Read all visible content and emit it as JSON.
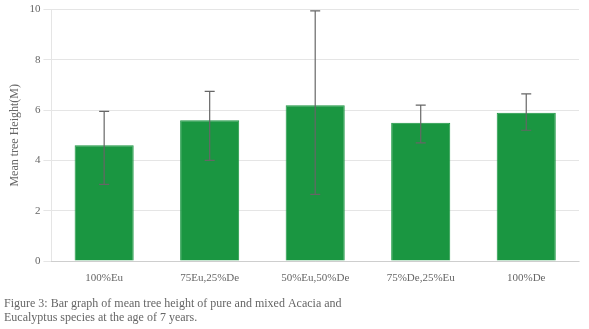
{
  "chart_data": {
    "type": "bar",
    "categories": [
      "100%Eu",
      "75Eu,25%De",
      "50%Eu,50%De",
      "75%De,25%Eu",
      "100%De"
    ],
    "values": [
      4.6,
      5.6,
      6.2,
      5.5,
      5.9
    ],
    "errors_upper": [
      1.35,
      1.15,
      3.75,
      0.7,
      0.75
    ],
    "errors_lower": [
      1.55,
      1.6,
      3.55,
      0.8,
      0.7
    ],
    "color": "#1a9641",
    "ylabel": "Mean tree Height(M)",
    "ylim": [
      0,
      10
    ],
    "yticks": [
      0,
      2,
      4,
      6,
      8,
      10
    ],
    "grid": true,
    "annotations": [
      "Figure 3: Bar graph of mean tree height of pure and mixed Acacia and",
      "Eucalyptus species at the age of 7 years."
    ]
  }
}
